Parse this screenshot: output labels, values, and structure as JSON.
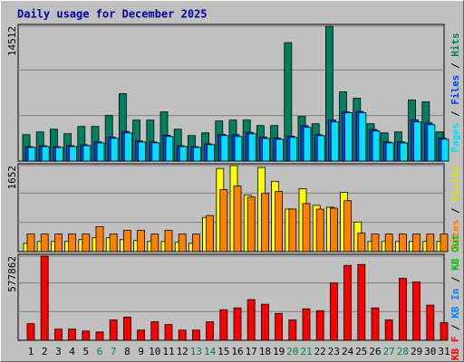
{
  "chart_data": [
    {
      "type": "bar",
      "title": "Daily usage for December 2025",
      "ylim": [
        0,
        14512
      ],
      "yticks": [
        14512
      ],
      "series": [
        {
          "name": "Pages",
          "color": "#00e0ff",
          "values": [
            1470,
            1568,
            1470,
            1568,
            1666,
            1960,
            2450,
            3038,
            2058,
            1960,
            2646,
            1568,
            1470,
            1764,
            2744,
            2646,
            2940,
            2450,
            2352,
            2548,
            3626,
            2744,
            4214,
            5194,
            5194,
            3234,
            1960,
            1960,
            4214,
            3920,
            2352
          ]
        },
        {
          "name": "Files",
          "color": "#0040ff",
          "values": [
            1550,
            1650,
            1550,
            1650,
            1760,
            2060,
            2580,
            3190,
            2160,
            2060,
            2780,
            1650,
            1550,
            1850,
            2880,
            2842,
            3090,
            2580,
            2470,
            2680,
            3822,
            2842,
            4420,
            5300,
            5350,
            3400,
            2060,
            2060,
            4420,
            4120,
            2470
          ]
        },
        {
          "name": "Hits",
          "color": "#008060",
          "values": [
            2843,
            3138,
            3432,
            2942,
            3726,
            3726,
            4903,
            7256,
            4412,
            4412,
            5295,
            3432,
            2745,
            3040,
            4314,
            4412,
            4412,
            3824,
            3824,
            12747,
            4804,
            4020,
            14512,
            7452,
            6765,
            4020,
            3040,
            3138,
            6569,
            6373,
            3138
          ]
        }
      ]
    },
    {
      "type": "bar",
      "ylim": [
        0,
        1652
      ],
      "yticks": [
        1652
      ],
      "series": [
        {
          "name": "Sites",
          "color": "#ff8000",
          "values": [
            337,
            337,
            337,
            337,
            337,
            480,
            337,
            408,
            408,
            337,
            408,
            337,
            337,
            693,
            1190,
            1261,
            1048,
            1119,
            1154,
            817,
            923,
            817,
            835,
            977,
            355,
            337,
            337,
            337,
            337,
            337,
            337
          ]
        },
        {
          "name": "Visits",
          "color": "#ffff00",
          "values": [
            160,
            195,
            195,
            195,
            231,
            266,
            266,
            231,
            213,
            195,
            195,
            178,
            160,
            657,
            1598,
            1652,
            1083,
            1616,
            1350,
            817,
            1208,
            888,
            852,
            1137,
            568,
            195,
            195,
            195,
            195,
            195,
            195
          ]
        }
      ]
    },
    {
      "type": "bar",
      "ylim": [
        0,
        577862
      ],
      "yticks": [
        577862
      ],
      "categories": [
        "1",
        "2",
        "3",
        "4",
        "5",
        "6",
        "7",
        "8",
        "9",
        "10",
        "11",
        "12",
        "13",
        "14",
        "15",
        "16",
        "17",
        "18",
        "19",
        "20",
        "21",
        "22",
        "23",
        "24",
        "25",
        "26",
        "27",
        "28",
        "29",
        "30",
        "31"
      ],
      "series": [
        {
          "name": "KB F",
          "color": "#ff0000",
          "values": [
            114300,
            577862,
            76200,
            76200,
            63500,
            57150,
            139700,
            158750,
            69850,
            127000,
            107950,
            69850,
            69850,
            127000,
            209550,
            222250,
            279400,
            247650,
            184150,
            139700,
            215900,
            203200,
            393700,
            514350,
            520700,
            222250,
            139700,
            425450,
            400050,
            241300,
            120650
          ]
        },
        {
          "name": "KB In",
          "color": "#0080ff"
        },
        {
          "name": "KB Out",
          "color": "#00c000"
        }
      ]
    }
  ]
}
